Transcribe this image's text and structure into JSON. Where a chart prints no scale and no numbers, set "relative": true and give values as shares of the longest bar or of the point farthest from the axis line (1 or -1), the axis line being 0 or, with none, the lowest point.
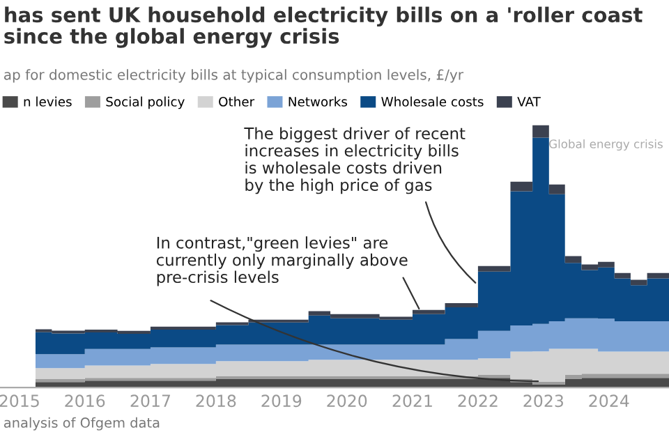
{
  "chart_data": {
    "type": "area",
    "stacked": true,
    "relative": true,
    "title": "has sent UK household electricity bills on a 'roller coast\nsince the global energy crisis",
    "subtitle": "ap for domestic electricity bills at typical consumption levels, £/yr",
    "x": [
      "2015-04",
      "2015-07",
      "2015-07",
      "2016-01",
      "2016-01",
      "2016-07",
      "2016-07",
      "2017-01",
      "2017-01",
      "2018-01",
      "2018-01",
      "2018-07",
      "2018-07",
      "2019-06",
      "2019-06",
      "2019-10",
      "2019-10",
      "2020-07",
      "2020-07",
      "2021-01",
      "2021-01",
      "2021-07",
      "2021-07",
      "2022-01",
      "2022-01",
      "2022-07",
      "2022-07",
      "2022-11",
      "2022-11",
      "2023-02",
      "2023-02",
      "2023-05",
      "2023-05",
      "2023-08",
      "2023-08",
      "2023-11",
      "2023-11",
      "2024-02",
      "2024-02",
      "2024-05",
      "2024-05",
      "2024-08",
      "2024-08",
      "2024-12-01"
    ],
    "xlim": [
      "2014-09-15",
      "2024-12-01"
    ],
    "xticks": [
      {
        "value": "2015",
        "label": "2015"
      },
      {
        "value": "2016",
        "label": "2016"
      },
      {
        "value": "2017",
        "label": "2017"
      },
      {
        "value": "2018",
        "label": "2018"
      },
      {
        "value": "2019",
        "label": "2019"
      },
      {
        "value": "2020",
        "label": "2020"
      },
      {
        "value": "2021",
        "label": "2021"
      },
      {
        "value": "2022",
        "label": "2022"
      },
      {
        "value": "2023",
        "label": "2023"
      },
      {
        "value": "2024",
        "label": "2024"
      }
    ],
    "tick_labels": "x",
    "legend": "top",
    "series": [
      {
        "name": "n levies",
        "color": "#4a4a4a",
        "values": [
          0.021,
          0.021,
          0.021,
          0.021,
          0.026,
          0.026,
          0.026,
          0.026,
          0.026,
          0.026,
          0.032,
          0.032,
          0.032,
          0.032,
          0.032,
          0.032,
          0.032,
          0.032,
          0.032,
          0.032,
          0.032,
          0.032,
          0.032,
          0.032,
          0.037,
          0.037,
          0.021,
          0.021,
          0.011,
          0.011,
          0.011,
          0.011,
          0.032,
          0.032,
          0.037,
          0.037,
          0.037,
          0.037,
          0.037,
          0.037,
          0.037,
          0.037,
          0.037,
          0.037
        ]
      },
      {
        "name": "Social policy",
        "color": "#9e9e9e",
        "values": [
          0.011,
          0.011,
          0.011,
          0.011,
          0.011,
          0.011,
          0.011,
          0.011,
          0.011,
          0.011,
          0.011,
          0.011,
          0.011,
          0.011,
          0.011,
          0.011,
          0.011,
          0.011,
          0.011,
          0.011,
          0.011,
          0.011,
          0.011,
          0.011,
          0.011,
          0.011,
          0.011,
          0.011,
          0.011,
          0.011,
          0.011,
          0.011,
          0.016,
          0.016,
          0.016,
          0.016,
          0.016,
          0.016,
          0.016,
          0.016,
          0.016,
          0.016,
          0.016,
          0.016
        ]
      },
      {
        "name": "Other",
        "color": "#d3d3d3",
        "values": [
          0.042,
          0.042,
          0.042,
          0.042,
          0.047,
          0.047,
          0.047,
          0.047,
          0.053,
          0.053,
          0.058,
          0.058,
          0.058,
          0.058,
          0.063,
          0.063,
          0.063,
          0.063,
          0.063,
          0.063,
          0.063,
          0.063,
          0.063,
          0.063,
          0.063,
          0.063,
          0.105,
          0.105,
          0.116,
          0.116,
          0.126,
          0.126,
          0.1,
          0.1,
          0.095,
          0.095,
          0.084,
          0.084,
          0.084,
          0.084,
          0.084,
          0.084,
          0.084,
          0.084
        ]
      },
      {
        "name": "Networks",
        "color": "#7ba3d6",
        "values": [
          0.053,
          0.053,
          0.053,
          0.053,
          0.063,
          0.063,
          0.063,
          0.063,
          0.063,
          0.063,
          0.063,
          0.063,
          0.063,
          0.063,
          0.058,
          0.058,
          0.058,
          0.058,
          0.058,
          0.058,
          0.058,
          0.058,
          0.079,
          0.079,
          0.105,
          0.105,
          0.1,
          0.1,
          0.105,
          0.105,
          0.105,
          0.105,
          0.116,
          0.116,
          0.116,
          0.116,
          0.126,
          0.126,
          0.116,
          0.116,
          0.116,
          0.116,
          0.116,
          0.116
        ]
      },
      {
        "name": "Wholesale costs",
        "color": "#0b4a85",
        "values": [
          0.084,
          0.084,
          0.079,
          0.079,
          0.063,
          0.063,
          0.058,
          0.058,
          0.068,
          0.068,
          0.074,
          0.074,
          0.084,
          0.084,
          0.111,
          0.111,
          0.1,
          0.1,
          0.095,
          0.095,
          0.116,
          0.116,
          0.121,
          0.121,
          0.226,
          0.226,
          0.511,
          0.511,
          0.71,
          0.71,
          0.484,
          0.484,
          0.211,
          0.211,
          0.184,
          0.184,
          0.195,
          0.195,
          0.163,
          0.163,
          0.137,
          0.137,
          0.163,
          0.163
        ]
      },
      {
        "name": "VAT",
        "color": "#3b4150",
        "values": [
          0.011,
          0.011,
          0.011,
          0.011,
          0.011,
          0.011,
          0.011,
          0.011,
          0.011,
          0.011,
          0.011,
          0.011,
          0.011,
          0.011,
          0.016,
          0.016,
          0.016,
          0.016,
          0.011,
          0.011,
          0.016,
          0.016,
          0.016,
          0.016,
          0.021,
          0.021,
          0.037,
          0.037,
          0.047,
          0.047,
          0.037,
          0.037,
          0.026,
          0.026,
          0.021,
          0.021,
          0.021,
          0.021,
          0.021,
          0.021,
          0.021,
          0.021,
          0.021,
          0.021
        ]
      }
    ],
    "annotations": [
      "The biggest driver of recent\nincreases in electricity bills\nis wholesale costs driven\nby the high price of gas",
      "In contrast,\"green levies\" are\ncurrently only marginally above\npre-crisis levels",
      "Global energy crisis",
      "analysis of Ofgem data"
    ]
  }
}
